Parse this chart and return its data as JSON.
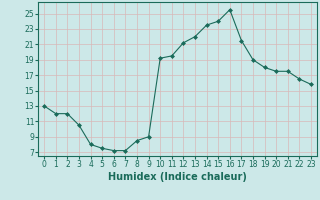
{
  "x": [
    0,
    1,
    2,
    3,
    4,
    5,
    6,
    7,
    8,
    9,
    10,
    11,
    12,
    13,
    14,
    15,
    16,
    17,
    18,
    19,
    20,
    21,
    22,
    23
  ],
  "y": [
    13,
    12,
    12,
    10.5,
    8,
    7.5,
    7.2,
    7.2,
    8.5,
    9,
    19.2,
    19.5,
    21.2,
    22,
    23.5,
    24,
    25.5,
    21.5,
    19,
    18,
    17.5,
    17.5,
    16.5,
    15.8
  ],
  "line_color": "#1a6b5a",
  "marker": "D",
  "marker_size": 2.0,
  "bg_color": "#cce8e8",
  "grid_color": "#d8b8b8",
  "xlabel": "Humidex (Indice chaleur)",
  "xlim": [
    -0.5,
    23.5
  ],
  "ylim": [
    6.5,
    26.5
  ],
  "yticks": [
    7,
    9,
    11,
    13,
    15,
    17,
    19,
    21,
    23,
    25
  ],
  "xticks": [
    0,
    1,
    2,
    3,
    4,
    5,
    6,
    7,
    8,
    9,
    10,
    11,
    12,
    13,
    14,
    15,
    16,
    17,
    18,
    19,
    20,
    21,
    22,
    23
  ],
  "tick_label_fontsize": 5.5,
  "xlabel_fontsize": 7.0,
  "linewidth": 0.8
}
